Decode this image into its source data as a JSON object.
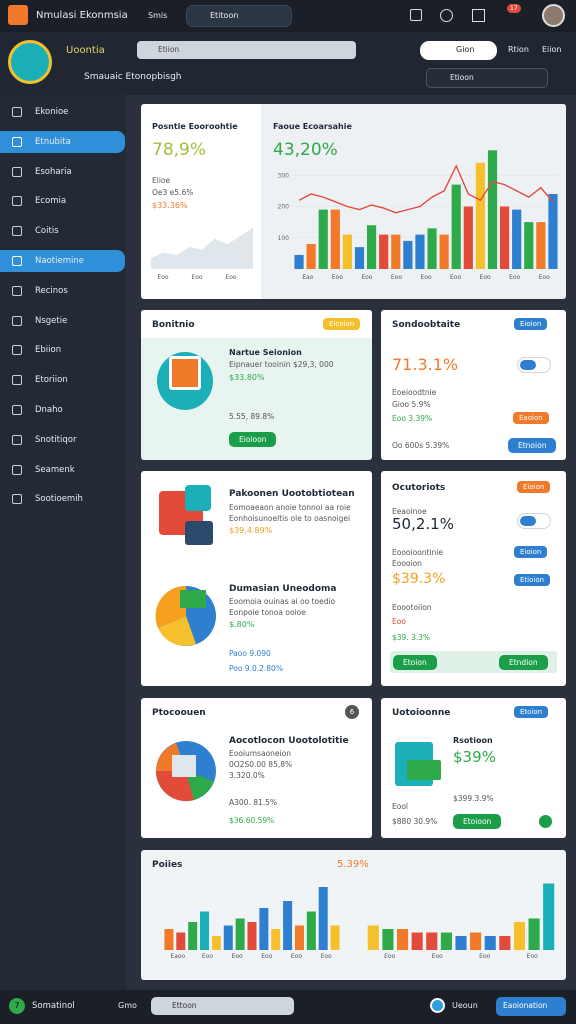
{
  "topbar": {
    "app_title": "Nmulasi Ekonmsia",
    "menu": "Smis",
    "search": "Etitoon",
    "notifications": "17"
  },
  "subheader": {
    "brand": "Uoontia",
    "search": "Etiion",
    "button": "Gion",
    "links": [
      "Rtion",
      "Eiion"
    ],
    "page_title": "Smauaic Etonopbisgh",
    "search2": "Etioon"
  },
  "sidebar": {
    "items": [
      "Ekonioe",
      "Etnubita",
      "Esoharia",
      "Ecomia",
      "Coitis",
      "Naotiemine",
      "Recinos",
      "Nsgetie",
      "Ebiion",
      "Etoriion",
      "Dnaho",
      "Snotitiqor",
      "Seamenk",
      "Sootioemih"
    ],
    "active": [
      1,
      5
    ]
  },
  "hero": {
    "left": {
      "title": "Posntie Eooroohtie",
      "value": "78,9%",
      "label": "Elioe",
      "sub": "Oe3 e5.6%",
      "highlight": "$33.36%",
      "chart": {
        "type": "area",
        "color": "#dfe6ec",
        "ylim": [
          0,
          100
        ],
        "values": [
          20,
          30,
          25,
          40,
          35,
          55,
          45,
          60,
          75
        ],
        "x_labels": [
          "Eoo",
          "Eoo",
          "Eoo"
        ]
      }
    },
    "right": {
      "title": "Faoue Ecoarsahie",
      "value": "43,20%",
      "chart": {
        "type": "bar",
        "ylim": [
          0,
          400
        ],
        "yticks": [
          100,
          200,
          300
        ],
        "values": [
          45,
          80,
          190,
          190,
          110,
          70,
          140,
          110,
          110,
          90,
          110,
          130,
          110,
          270,
          200,
          340,
          380,
          200,
          190,
          150,
          150,
          240
        ],
        "colors": [
          "#2f7fd1",
          "#f07a2a",
          "#2eaa4a",
          "#f07a2a",
          "#f5c02c",
          "#2f7fd1",
          "#2eaa4a",
          "#e24a3a",
          "#f07a2a",
          "#2f7fd1",
          "#2f7fd1",
          "#2eaa4a",
          "#f07a2a",
          "#2eaa4a",
          "#e24a3a",
          "#f5c02c",
          "#2eaa4a",
          "#e24a3a",
          "#2f7fd1",
          "#2eaa4a",
          "#f07a2a",
          "#2f7fd1"
        ],
        "line_color": "#e24a3a",
        "line_values": [
          220,
          240,
          230,
          215,
          200,
          190,
          205,
          195,
          180,
          190,
          200,
          230,
          250,
          330,
          240,
          220,
          280,
          270,
          250,
          230,
          260,
          215
        ],
        "x_labels": [
          "Eao",
          "Eoo",
          "Eoo",
          "Eoo",
          "Eoo",
          "Eoo",
          "Eoo",
          "Eoo",
          "Eoo"
        ]
      }
    }
  },
  "card1": {
    "title": "Bonitnio",
    "badge": "Eicnion",
    "name": "Nartue Seionion",
    "desc": "Eipnauer tooinin $29,3, 000",
    "value": "$33.80%",
    "stat": "5.55, 89.8%",
    "button": "Eioioon"
  },
  "card2": {
    "title": "Sondoobtaite",
    "badge": "Eioion",
    "value": "71.3.1%",
    "label": "Eoeioodtnie",
    "sub": "Gioo 5.9%",
    "sub2": "Eoo 3.39%",
    "badge2": "Eaoion",
    "foot": "Oo 600s 5.39%",
    "button": "Etnoion"
  },
  "card3": {
    "title": "Pakoonen Uootobtiotean",
    "desc": [
      "Eomoaeaon anoie tonnoi aa roie",
      "Eonhoisunoeltis ole to oasnoigei"
    ],
    "value": "$39,4.89%",
    "title2": "Dumasian Uneodoma",
    "desc2": [
      "Eoomoia ouinas ai oo toedio",
      "Eonpoie tonoa ooioe"
    ],
    "value2": "$.80%",
    "foot": "Paoo 9.090",
    "foot2": "Poo 9.0.2.80%"
  },
  "card4": {
    "title": "Ocutoriots",
    "badge": "Eioion",
    "label": "Eeaoinoe",
    "value": "50,2.1%",
    "label2": "Eoooioontinie",
    "label3": "Eoooion",
    "badge2": "Eioion",
    "value2": "$39.3%",
    "badge3": "Etioion",
    "label4": "Eoootoiion",
    "label5": "Eoo",
    "value3": "$39. 3.3%",
    "button": "Etoion",
    "button2": "Etndion"
  },
  "card5": {
    "title": "Ptocoouen",
    "badge": "6",
    "name": "Aocotlocon Uootolotitie",
    "desc": [
      "Eooiumsaoneion",
      "0O2S0.00 85,8%"
    ],
    "value": "3.320.0%",
    "stat": "A300. 81.5%",
    "stat2": "$36.60.59%"
  },
  "card6": {
    "title": "Uotoioonne",
    "badge": "Etoion",
    "name": "Rsotioon",
    "value": "$39%",
    "stat": "$399.3.9%",
    "label": "Eool",
    "stat2": "$880 30.9%",
    "button": "Etoioon"
  },
  "card7": {
    "title": "Poiies",
    "value": "5.39%",
    "chart_left": {
      "type": "bar",
      "ylim": [
        0,
        100
      ],
      "values": [
        30,
        25,
        40,
        55,
        20,
        35,
        45,
        40,
        60,
        30,
        70,
        35,
        55,
        90,
        35
      ],
      "colors": [
        "#f07a2a",
        "#e24a3a",
        "#2eaa4a",
        "#1bb0b8",
        "#f5c02c",
        "#2f7fd1",
        "#2eaa4a",
        "#e24a3a",
        "#2f7fd1",
        "#f5c02c",
        "#2f7fd1",
        "#f07a2a",
        "#2eaa4a",
        "#2f7fd1",
        "#f5c02c"
      ],
      "x_labels": [
        "Eaoo",
        "Eoo",
        "Eoo",
        "Eoo",
        "Eoo",
        "Eoo"
      ]
    },
    "chart_right": {
      "type": "bar",
      "ylim": [
        0,
        100
      ],
      "values": [
        35,
        30,
        30,
        25,
        25,
        25,
        20,
        25,
        20,
        20,
        40,
        45,
        95
      ],
      "colors": [
        "#f5c02c",
        "#2eaa4a",
        "#f07a2a",
        "#e24a3a",
        "#e24a3a",
        "#2eaa4a",
        "#2f7fd1",
        "#f07a2a",
        "#2f7fd1",
        "#e24a3a",
        "#f5c02c",
        "#2eaa4a",
        "#1bb0b8"
      ],
      "x_labels": [
        "Eoo",
        "Eoo",
        "Eoo",
        "Eoo"
      ]
    }
  },
  "bottombar": {
    "badge": "7",
    "title": "Somatinol",
    "link": "Gmo",
    "search": "Ettoon",
    "user": "Ueoun",
    "button": "Eaoionation"
  }
}
